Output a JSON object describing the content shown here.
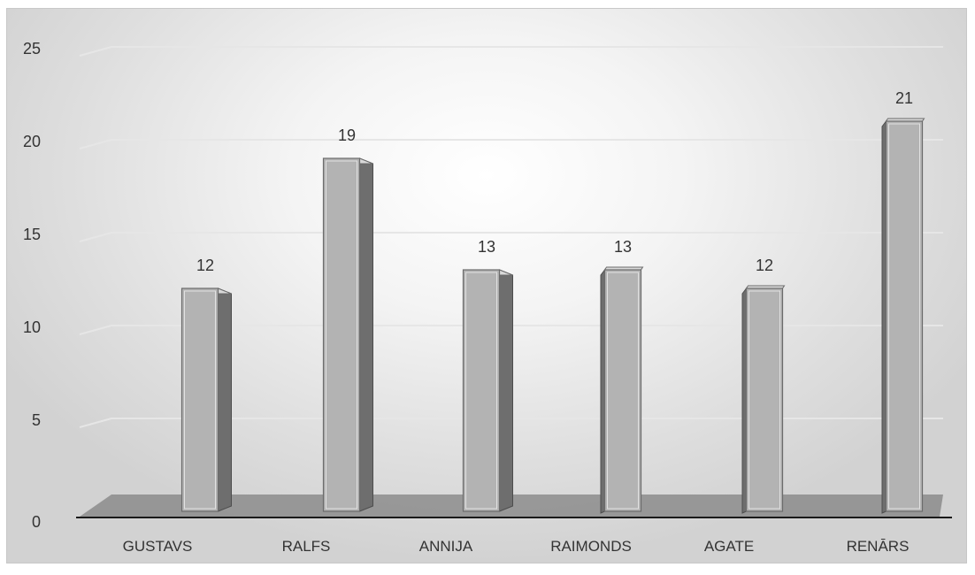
{
  "chart_data": {
    "type": "bar",
    "categories": [
      "GUSTAVS",
      "RALFS",
      "ANNIJA",
      "RAIMONDS",
      "AGATE",
      "RENĀRS"
    ],
    "values": [
      12,
      19,
      13,
      13,
      12,
      21
    ],
    "title": "",
    "xlabel": "",
    "ylabel": "",
    "ylim": [
      0,
      25
    ],
    "yticks": [
      0,
      5,
      10,
      15,
      20,
      25
    ],
    "grid": true,
    "legend": "none",
    "data_labels": true,
    "three_d": true,
    "colors": {
      "bar_front": "#b3b3b3",
      "bar_side": "#6e6e6e",
      "bar_top": "#d9d9d9",
      "floor": "#8c8c8c",
      "grid": "#e6e6e6"
    }
  }
}
